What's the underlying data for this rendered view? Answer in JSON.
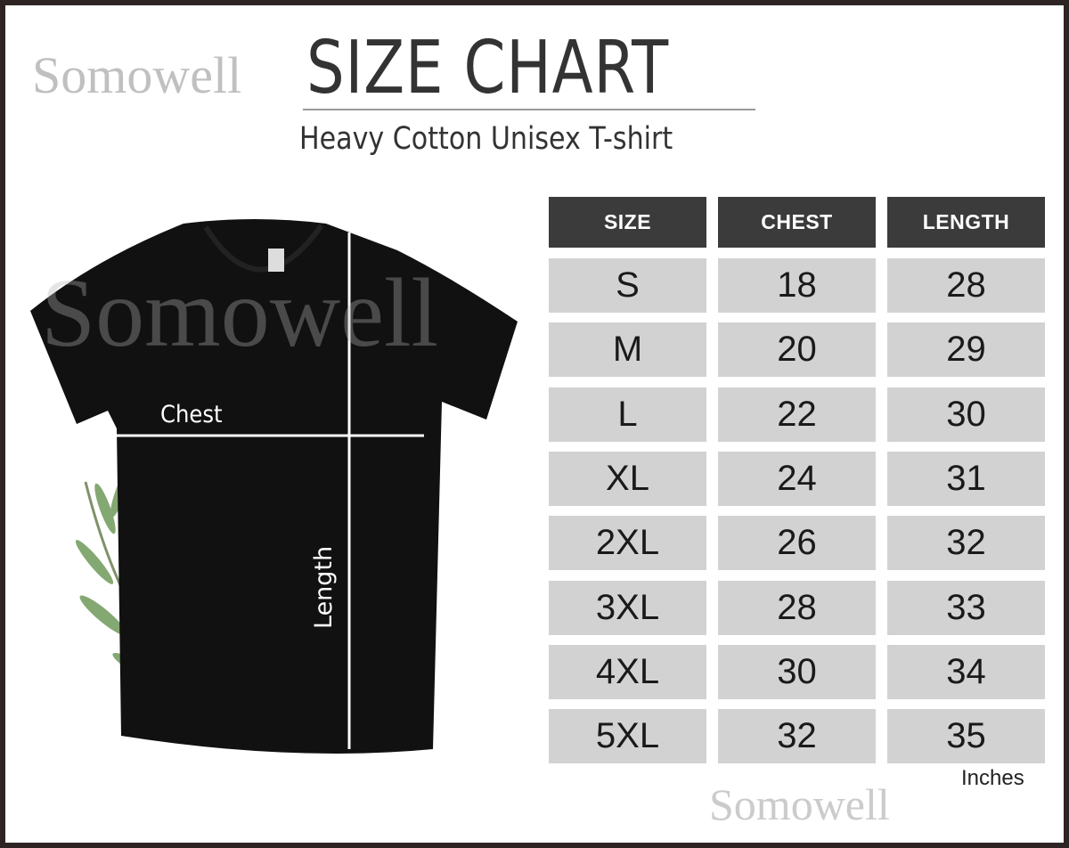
{
  "header": {
    "title": "SIZE CHART",
    "subtitle": "Heavy Cotton Unisex T-shirt"
  },
  "watermark": "Somowell",
  "garment": {
    "chest_label": "Chest",
    "length_label": "Length"
  },
  "size_table": {
    "columns": [
      "SIZE",
      "CHEST",
      "LENGTH"
    ],
    "rows": [
      [
        "S",
        "18",
        "28"
      ],
      [
        "M",
        "20",
        "29"
      ],
      [
        "L",
        "22",
        "30"
      ],
      [
        "XL",
        "24",
        "31"
      ],
      [
        "2XL",
        "26",
        "32"
      ],
      [
        "3XL",
        "28",
        "33"
      ],
      [
        "4XL",
        "30",
        "34"
      ],
      [
        "5XL",
        "32",
        "35"
      ]
    ],
    "units": "Inches"
  },
  "colors": {
    "frame": "#2e2424",
    "header_bg": "#3b3b3b",
    "cell_bg": "#d2d2d2",
    "shirt": "#111111"
  }
}
